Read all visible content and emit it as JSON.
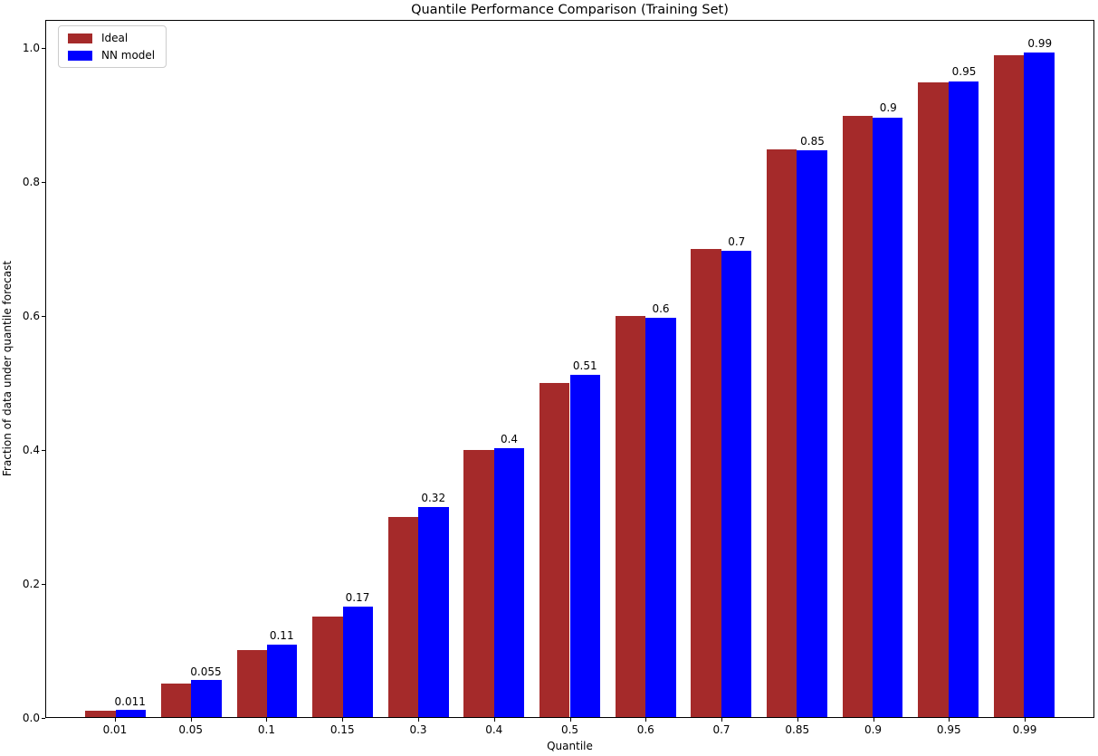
{
  "chart_data": {
    "type": "bar",
    "title": "Quantile Performance Comparison (Training Set)",
    "xlabel": "Quantile",
    "ylabel": "Fraction of data under quantile forecast",
    "categories": [
      "0.01",
      "0.05",
      "0.1",
      "0.15",
      "0.3",
      "0.4",
      "0.5",
      "0.6",
      "0.7",
      "0.85",
      "0.9",
      "0.95",
      "0.99"
    ],
    "series": [
      {
        "name": "Ideal",
        "color": "#A52A2A",
        "values": [
          0.01,
          0.05,
          0.1,
          0.15,
          0.3,
          0.4,
          0.5,
          0.6,
          0.7,
          0.85,
          0.9,
          0.95,
          0.99
        ]
      },
      {
        "name": "NN model",
        "color": "#0000FF",
        "values": [
          0.011,
          0.055,
          0.109,
          0.166,
          0.315,
          0.403,
          0.512,
          0.597,
          0.698,
          0.848,
          0.897,
          0.951,
          0.994
        ]
      }
    ],
    "bar_labels": [
      "0.011",
      "0.055",
      "0.11",
      "0.17",
      "0.32",
      "0.4",
      "0.51",
      "0.6",
      "0.7",
      "0.85",
      "0.9",
      "0.95",
      "0.99"
    ],
    "yticks": [
      0.0,
      0.2,
      0.4,
      0.6,
      0.8,
      1.0
    ],
    "ytick_labels": [
      "0.0",
      "0.2",
      "0.4",
      "0.6",
      "0.8",
      "1.0"
    ],
    "ylim": [
      0,
      1.042
    ],
    "grid": false,
    "legend_position": "upper left"
  }
}
